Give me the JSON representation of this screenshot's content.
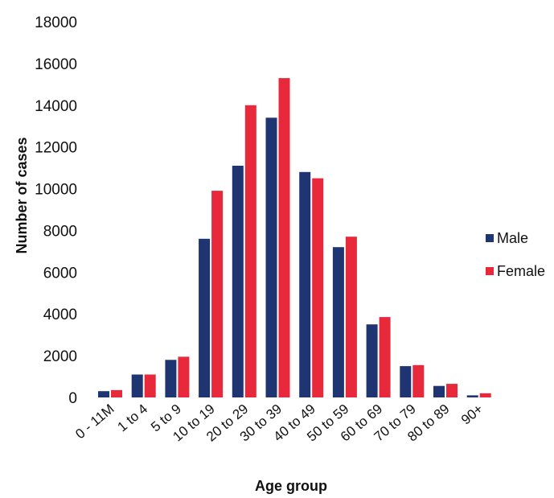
{
  "chart_data": {
    "type": "bar",
    "title": "",
    "xlabel": "Age group",
    "ylabel": "Number of cases",
    "ylim": [
      0,
      18000
    ],
    "yticks": [
      "0",
      "2000",
      "4000",
      "6000",
      "8000",
      "10000",
      "12000",
      "14000",
      "16000",
      "18000"
    ],
    "categories": [
      "0 - 11M",
      "1 to 4",
      "5 to 9",
      "10 to 19",
      "20 to 29",
      "30 to 39",
      "40 to 49",
      "50 to 59",
      "60 to 69",
      "70 to 79",
      "80 to 89",
      "90+"
    ],
    "series": [
      {
        "name": "Male",
        "color": "#1f3572",
        "values": [
          300,
          1100,
          1800,
          7600,
          11100,
          13400,
          10800,
          7200,
          3500,
          1500,
          550,
          100
        ]
      },
      {
        "name": "Female",
        "color": "#e8283b",
        "values": [
          350,
          1100,
          1950,
          9900,
          14000,
          15300,
          10500,
          7700,
          3850,
          1550,
          650,
          200
        ]
      }
    ],
    "grid": false,
    "legend": "right"
  }
}
